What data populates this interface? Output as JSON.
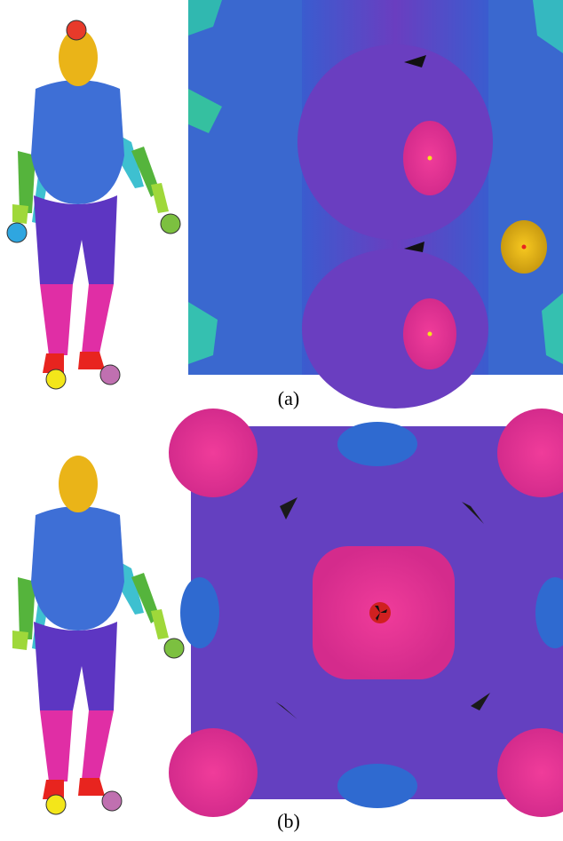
{
  "figures": [
    {
      "caption": "(a)"
    },
    {
      "caption": "(b)"
    }
  ]
}
